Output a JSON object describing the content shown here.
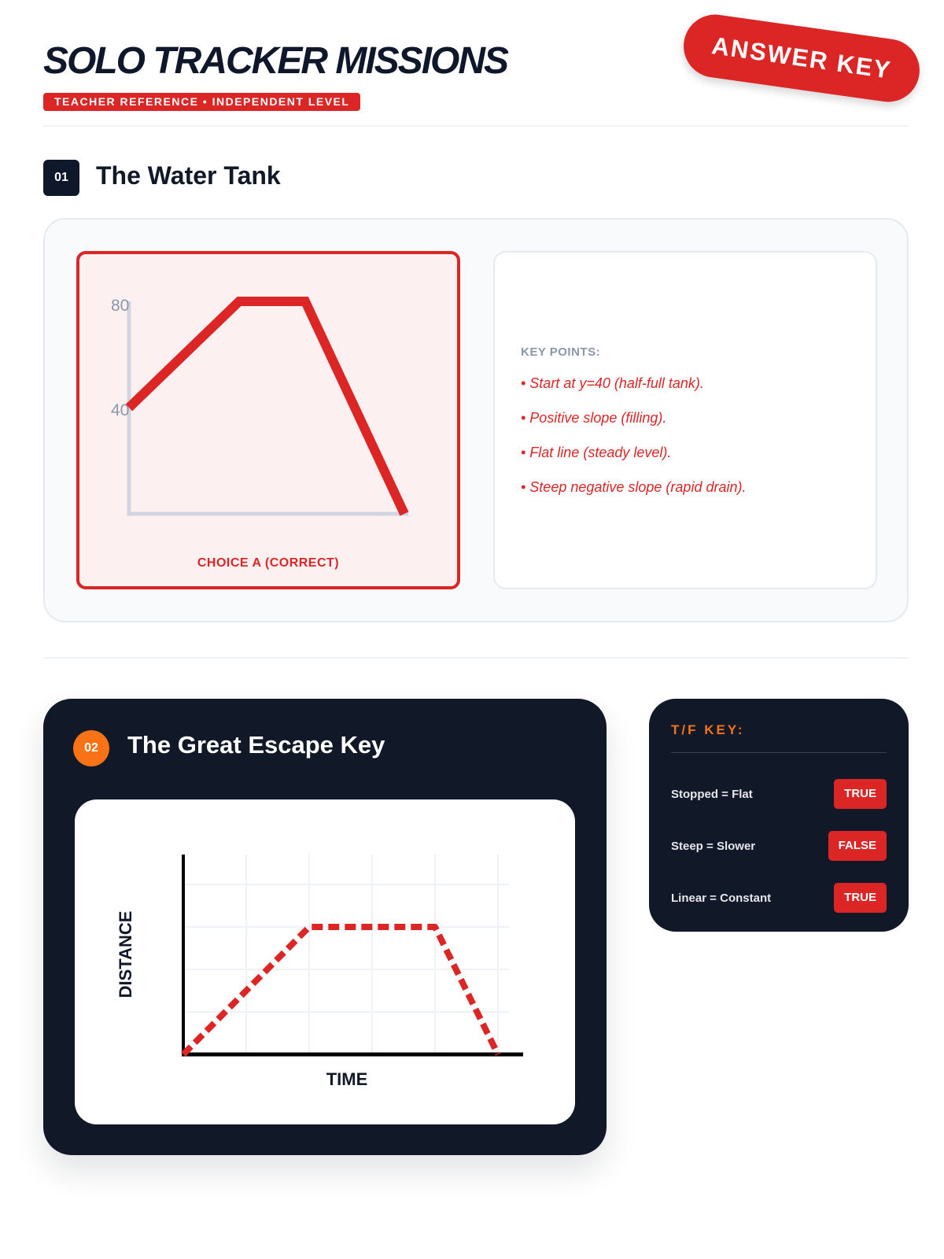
{
  "header": {
    "title": "SOLO TRACKER MISSIONS",
    "subtitle": "TEACHER REFERENCE • INDEPENDENT LEVEL",
    "stamp": "ANSWER KEY"
  },
  "section1": {
    "number": "01",
    "title": "The Water Tank",
    "choice_label": "CHOICE A (CORRECT)",
    "key_points_heading": "KEY POINTS:",
    "key_points": [
      "• Start at y=40 (half-full tank).",
      "• Positive slope (filling).",
      "• Flat line (steady level).",
      "• Steep negative slope (rapid drain)."
    ]
  },
  "section2": {
    "number": "02",
    "title": "The Great Escape Key",
    "tf_heading": "T/F KEY:",
    "tf_items": [
      {
        "label": "Stopped = Flat",
        "value": "TRUE"
      },
      {
        "label": "Steep = Slower",
        "value": "FALSE"
      },
      {
        "label": "Linear = Constant",
        "value": "TRUE"
      }
    ]
  },
  "colors": {
    "accent_red": "#dc2626",
    "accent_orange": "#f97316",
    "navy": "#111827"
  },
  "chart_data": [
    {
      "type": "line",
      "title": "",
      "xlabel": "",
      "ylabel": "",
      "ylim": [
        0,
        80
      ],
      "ytick_labels": [
        "80",
        "40"
      ],
      "series": [
        {
          "x": [
            0,
            1,
            1.6,
            2.5
          ],
          "y": [
            40,
            80,
            80,
            0
          ],
          "style": "solid",
          "color": "#dc2626"
        }
      ],
      "grid": false
    },
    {
      "type": "line",
      "title": "",
      "xlabel": "TIME",
      "ylabel": "DISTANCE",
      "xlim": [
        0,
        5
      ],
      "ylim": [
        0,
        4.5
      ],
      "series": [
        {
          "x": [
            0,
            2,
            4,
            5
          ],
          "y": [
            0,
            3,
            3,
            0
          ],
          "style": "dashed",
          "color": "#dc2626"
        }
      ],
      "grid": true
    }
  ]
}
